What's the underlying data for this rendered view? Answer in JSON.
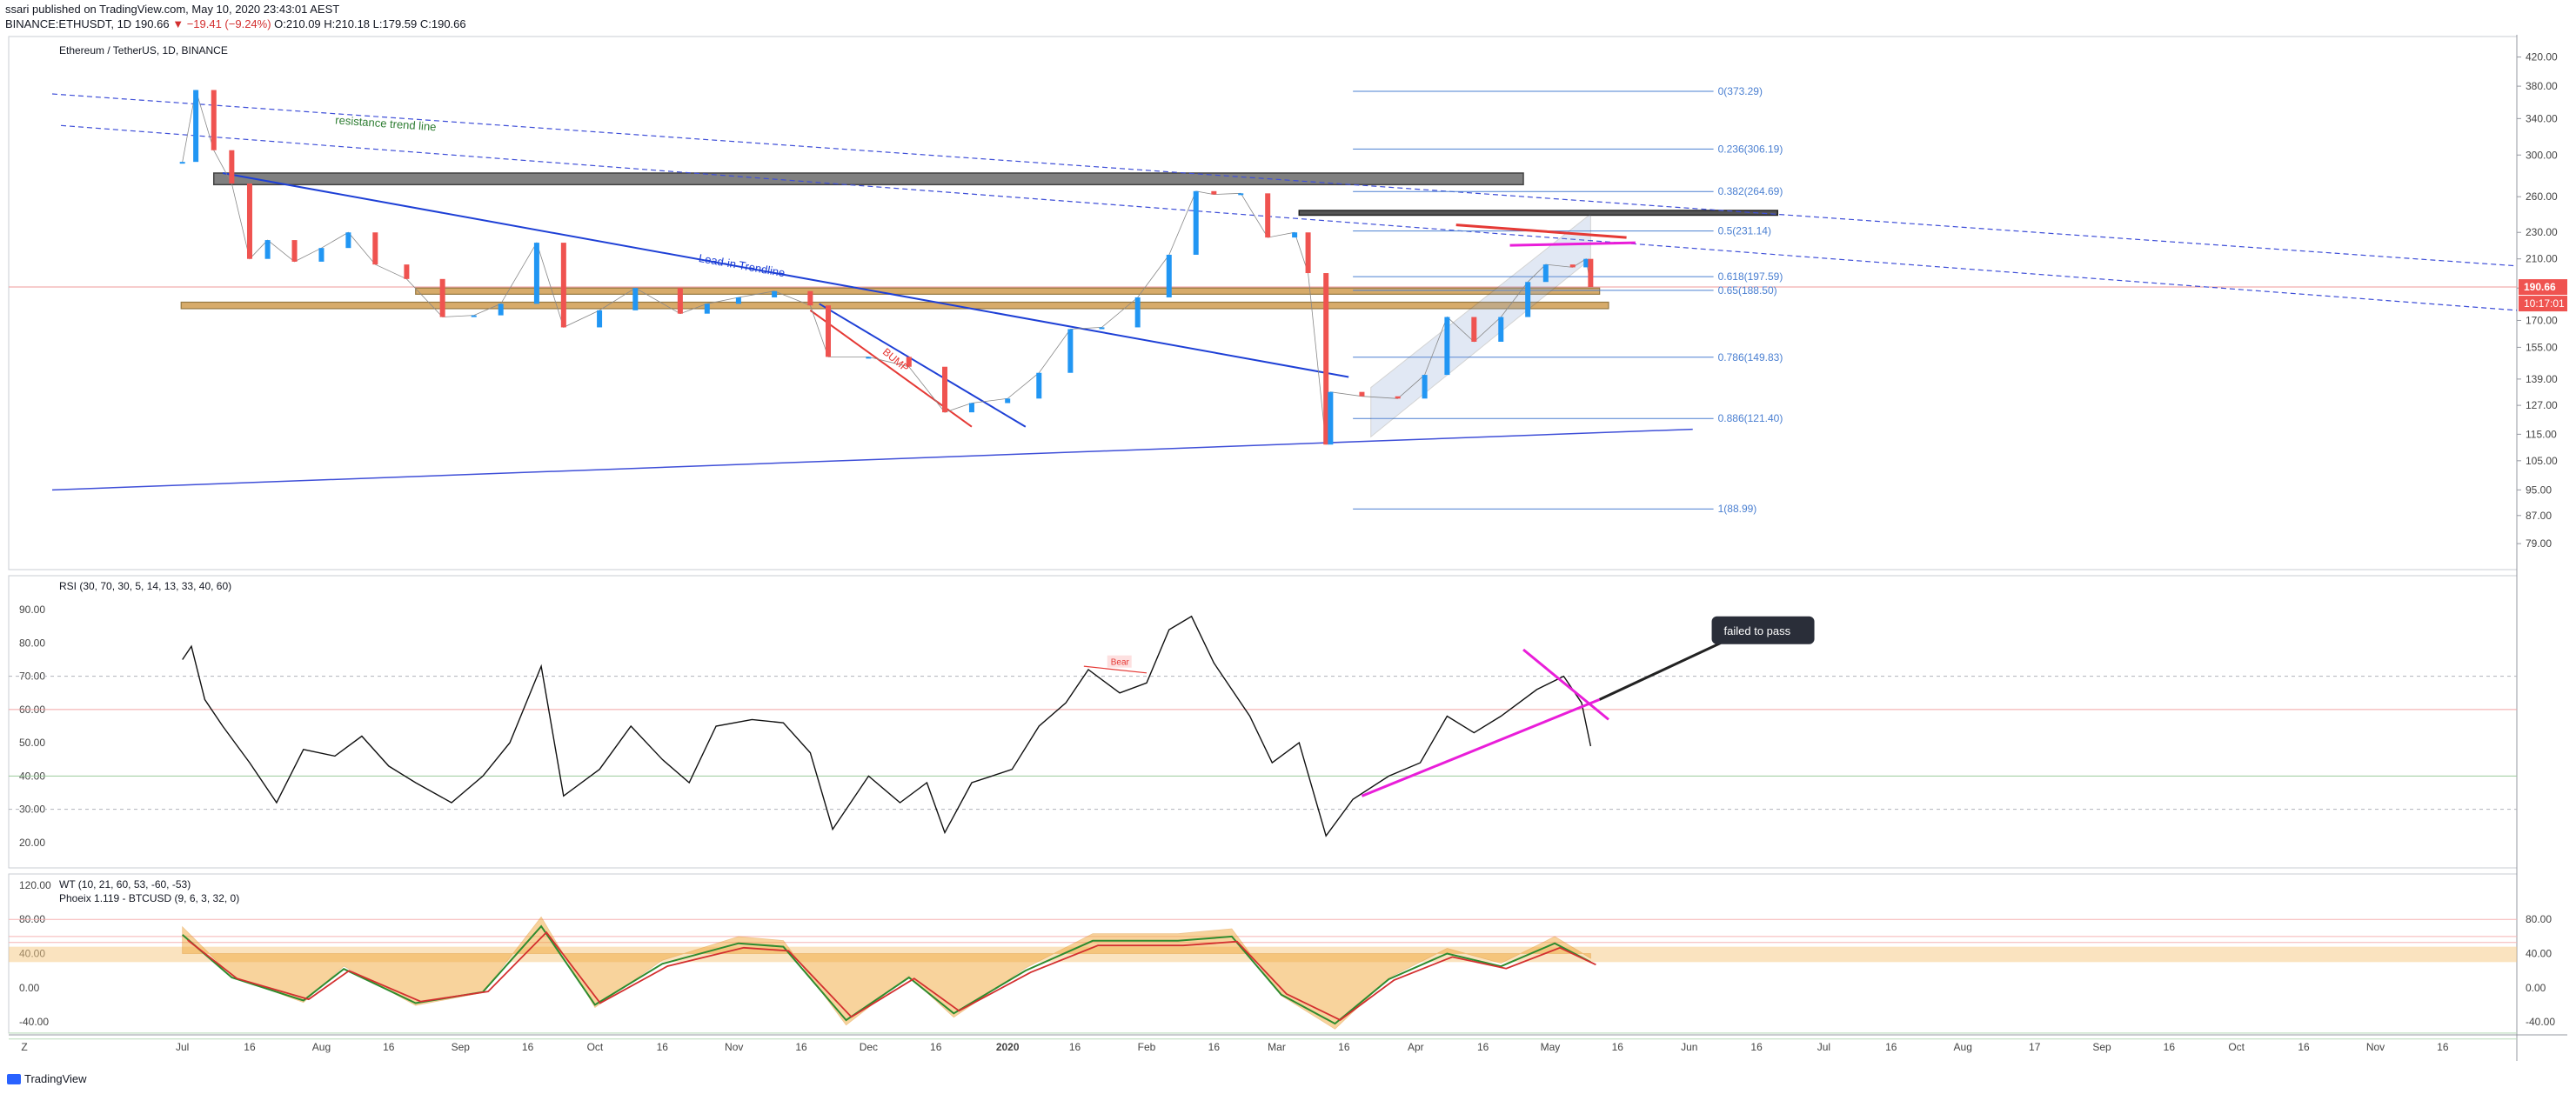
{
  "header": {
    "line1": "ssari published on TradingView.com, May 10, 2020 23:43:01 AEST",
    "symbol": "BINANCE:ETHUSDT, 1D",
    "last": "190.66",
    "change": "▼ −19.41 (−9.24%)",
    "ohlc": "O:210.09 H:210.18 L:179.59 C:190.66"
  },
  "footer": {
    "brand": "TradingView",
    "corner_label": "Z"
  },
  "colors": {
    "candle_up": "#2196f3",
    "candle_down": "#ef5350",
    "trendline": "#1e40d6",
    "support_band": "#d3a35a",
    "magenta": "#e91ed9",
    "fib": "#4a7fd1"
  },
  "chart_data": [
    {
      "type": "candlestick",
      "title": "Ethereum / TetherUS, 1D, BINANCE",
      "x_ticks": [
        "Jul",
        "16",
        "Aug",
        "16",
        "Sep",
        "16",
        "Oct",
        "16",
        "Nov",
        "16",
        "Dec",
        "16",
        "2020",
        "16",
        "Feb",
        "16",
        "Mar",
        "16",
        "Apr",
        "16",
        "May",
        "16",
        "Jun",
        "16",
        "Jul",
        "16",
        "Aug",
        "17",
        "Sep",
        "16",
        "Oct",
        "16",
        "Nov",
        "16"
      ],
      "y_scale": "log",
      "y_ticks": [
        420.0,
        380.0,
        340.0,
        300.0,
        260.0,
        230.0,
        210.0,
        190.0,
        170.0,
        155.0,
        139.0,
        127.0,
        115.0,
        105.0,
        95.0,
        87.0,
        79.0
      ],
      "last_price_label": "190.66",
      "countdown_label": "10:17:01",
      "close_series": [
        {
          "x": "Jul 01",
          "close": 293
        },
        {
          "x": "Jul 04",
          "close": 375
        },
        {
          "x": "Jul 08",
          "close": 305
        },
        {
          "x": "Jul 12",
          "close": 272
        },
        {
          "x": "Jul 16",
          "close": 210
        },
        {
          "x": "Jul 20",
          "close": 224
        },
        {
          "x": "Jul 26",
          "close": 208
        },
        {
          "x": "Aug 01",
          "close": 218
        },
        {
          "x": "Aug 07",
          "close": 230
        },
        {
          "x": "Aug 13",
          "close": 206
        },
        {
          "x": "Aug 20",
          "close": 196
        },
        {
          "x": "Aug 28",
          "close": 172
        },
        {
          "x": "Sep 04",
          "close": 173
        },
        {
          "x": "Sep 10",
          "close": 180
        },
        {
          "x": "Sep 18",
          "close": 222
        },
        {
          "x": "Sep 24",
          "close": 166
        },
        {
          "x": "Oct 02",
          "close": 176
        },
        {
          "x": "Oct 10",
          "close": 190
        },
        {
          "x": "Oct 20",
          "close": 174
        },
        {
          "x": "Oct 26",
          "close": 180
        },
        {
          "x": "Nov 02",
          "close": 184
        },
        {
          "x": "Nov 10",
          "close": 188
        },
        {
          "x": "Nov 18",
          "close": 179
        },
        {
          "x": "Nov 22",
          "close": 150
        },
        {
          "x": "Dec 01",
          "close": 150
        },
        {
          "x": "Dec 10",
          "close": 145
        },
        {
          "x": "Dec 18",
          "close": 124
        },
        {
          "x": "Dec 24",
          "close": 128
        },
        {
          "x": "Jan 01",
          "close": 130
        },
        {
          "x": "Jan 08",
          "close": 142
        },
        {
          "x": "Jan 15",
          "close": 165
        },
        {
          "x": "Jan 22",
          "close": 166
        },
        {
          "x": "Jan 30",
          "close": 184
        },
        {
          "x": "Feb 06",
          "close": 213
        },
        {
          "x": "Feb 12",
          "close": 265
        },
        {
          "x": "Feb 16",
          "close": 262
        },
        {
          "x": "Feb 22",
          "close": 263
        },
        {
          "x": "Feb 28",
          "close": 226
        },
        {
          "x": "Mar 05",
          "close": 230
        },
        {
          "x": "Mar 08",
          "close": 200
        },
        {
          "x": "Mar 12",
          "close": 111
        },
        {
          "x": "Mar 13",
          "close": 133
        },
        {
          "x": "Mar 20",
          "close": 131
        },
        {
          "x": "Mar 28",
          "close": 130
        },
        {
          "x": "Apr 03",
          "close": 141
        },
        {
          "x": "Apr 08",
          "close": 172
        },
        {
          "x": "Apr 14",
          "close": 158
        },
        {
          "x": "Apr 20",
          "close": 172
        },
        {
          "x": "Apr 26",
          "close": 194
        },
        {
          "x": "Apr 30",
          "close": 206
        },
        {
          "x": "May 06",
          "close": 204
        },
        {
          "x": "May 09",
          "close": 210
        },
        {
          "x": "May 10",
          "close": 190.66
        }
      ],
      "fib_levels": [
        {
          "label": "0(373.29)",
          "price": 373.29
        },
        {
          "label": "0.236(306.19)",
          "price": 306.19
        },
        {
          "label": "0.382(264.69)",
          "price": 264.69
        },
        {
          "label": "0.5(231.14)",
          "price": 231.14
        },
        {
          "label": "0.618(197.59)",
          "price": 197.59
        },
        {
          "label": "0.65(188.50)",
          "price": 188.5
        },
        {
          "label": "0.786(149.83)",
          "price": 149.83
        },
        {
          "label": "0.886(121.40)",
          "price": 121.4
        },
        {
          "label": "1(88.99)",
          "price": 88.99
        }
      ],
      "annotations": [
        "resistance trend line",
        "Lead-in Trendline",
        "BUMP"
      ]
    },
    {
      "type": "line",
      "title": "RSI (30, 70, 30, 5, 14, 13, 33, 40, 60)",
      "y_ticks": [
        90.0,
        80.0,
        70.0,
        60.0,
        50.0,
        40.0,
        30.0,
        20.0
      ],
      "levels": [
        70,
        60,
        40,
        30
      ],
      "annotations": [
        "Bear",
        "failed to pass"
      ],
      "series": [
        {
          "values": [
            {
              "x": "Jul 01",
              "y": 75
            },
            {
              "x": "Jul 03",
              "y": 79
            },
            {
              "x": "Jul 06",
              "y": 63
            },
            {
              "x": "Jul 10",
              "y": 55
            },
            {
              "x": "Jul 16",
              "y": 44
            },
            {
              "x": "Jul 22",
              "y": 32
            },
            {
              "x": "Jul 28",
              "y": 48
            },
            {
              "x": "Aug 04",
              "y": 46
            },
            {
              "x": "Aug 10",
              "y": 52
            },
            {
              "x": "Aug 16",
              "y": 43
            },
            {
              "x": "Aug 22",
              "y": 38
            },
            {
              "x": "Aug 30",
              "y": 32
            },
            {
              "x": "Sep 06",
              "y": 40
            },
            {
              "x": "Sep 12",
              "y": 50
            },
            {
              "x": "Sep 19",
              "y": 73
            },
            {
              "x": "Sep 24",
              "y": 34
            },
            {
              "x": "Oct 02",
              "y": 42
            },
            {
              "x": "Oct 09",
              "y": 55
            },
            {
              "x": "Oct 16",
              "y": 45
            },
            {
              "x": "Oct 22",
              "y": 38
            },
            {
              "x": "Oct 28",
              "y": 55
            },
            {
              "x": "Nov 05",
              "y": 57
            },
            {
              "x": "Nov 12",
              "y": 56
            },
            {
              "x": "Nov 18",
              "y": 47
            },
            {
              "x": "Nov 23",
              "y": 24
            },
            {
              "x": "Dec 01",
              "y": 40
            },
            {
              "x": "Dec 08",
              "y": 32
            },
            {
              "x": "Dec 14",
              "y": 38
            },
            {
              "x": "Dec 18",
              "y": 23
            },
            {
              "x": "Dec 24",
              "y": 38
            },
            {
              "x": "Jan 02",
              "y": 42
            },
            {
              "x": "Jan 08",
              "y": 55
            },
            {
              "x": "Jan 14",
              "y": 62
            },
            {
              "x": "Jan 19",
              "y": 72
            },
            {
              "x": "Jan 26",
              "y": 65
            },
            {
              "x": "Feb 01",
              "y": 68
            },
            {
              "x": "Feb 06",
              "y": 84
            },
            {
              "x": "Feb 11",
              "y": 88
            },
            {
              "x": "Feb 16",
              "y": 74
            },
            {
              "x": "Feb 24",
              "y": 58
            },
            {
              "x": "Feb 29",
              "y": 44
            },
            {
              "x": "Mar 06",
              "y": 50
            },
            {
              "x": "Mar 12",
              "y": 22
            },
            {
              "x": "Mar 18",
              "y": 33
            },
            {
              "x": "Mar 26",
              "y": 40
            },
            {
              "x": "Apr 02",
              "y": 44
            },
            {
              "x": "Apr 08",
              "y": 58
            },
            {
              "x": "Apr 14",
              "y": 53
            },
            {
              "x": "Apr 20",
              "y": 58
            },
            {
              "x": "Apr 28",
              "y": 66
            },
            {
              "x": "May 04",
              "y": 70
            },
            {
              "x": "May 08",
              "y": 62
            },
            {
              "x": "May 10",
              "y": 49
            }
          ]
        }
      ]
    },
    {
      "type": "line",
      "title": "WT (10, 21, 60, 53, -60, -53)",
      "subtitle": "Phoeix 1.119 - BTCUSD (9, 6, 3, 32, 0)",
      "y_ticks_left": [
        120.0,
        80.0,
        40.0,
        0.0,
        -40.0
      ],
      "y_ticks_right": [
        80.0,
        40.0,
        0.0,
        -40.0
      ],
      "series": [
        {
          "values": [
            {
              "x": "Jul 01",
              "y": 62
            },
            {
              "x": "Jul 12",
              "y": 12
            },
            {
              "x": "Jul 28",
              "y": -15
            },
            {
              "x": "Aug 06",
              "y": 22
            },
            {
              "x": "Aug 22",
              "y": -18
            },
            {
              "x": "Sep 06",
              "y": -5
            },
            {
              "x": "Sep 19",
              "y": 72
            },
            {
              "x": "Oct 01",
              "y": -20
            },
            {
              "x": "Oct 16",
              "y": 28
            },
            {
              "x": "Nov 02",
              "y": 52
            },
            {
              "x": "Nov 12",
              "y": 48
            },
            {
              "x": "Nov 26",
              "y": -38
            },
            {
              "x": "Dec 10",
              "y": 12
            },
            {
              "x": "Dec 20",
              "y": -30
            },
            {
              "x": "Jan 05",
              "y": 20
            },
            {
              "x": "Jan 20",
              "y": 55
            },
            {
              "x": "Feb 08",
              "y": 55
            },
            {
              "x": "Feb 20",
              "y": 60
            },
            {
              "x": "Mar 02",
              "y": -8
            },
            {
              "x": "Mar 14",
              "y": -42
            },
            {
              "x": "Mar 26",
              "y": 10
            },
            {
              "x": "Apr 08",
              "y": 40
            },
            {
              "x": "Apr 20",
              "y": 25
            },
            {
              "x": "May 02",
              "y": 52
            },
            {
              "x": "May 10",
              "y": 30
            }
          ]
        }
      ]
    }
  ]
}
